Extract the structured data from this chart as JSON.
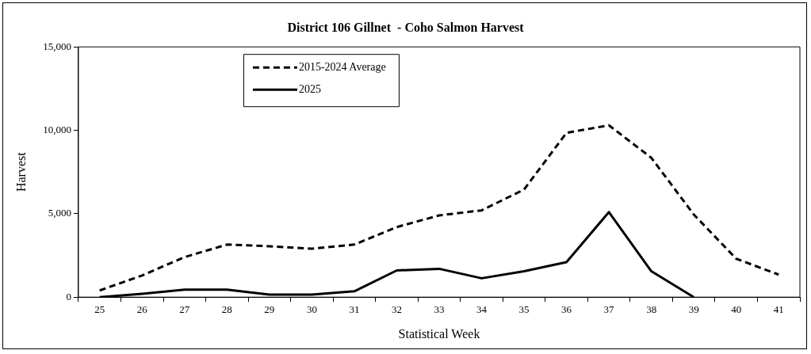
{
  "chart_data": {
    "type": "line",
    "title": "District 106 Gillnet  - Coho Salmon Harvest",
    "xlabel": "Statistical Week",
    "ylabel": "Harvest",
    "categories": [
      "25",
      "26",
      "27",
      "28",
      "29",
      "30",
      "31",
      "32",
      "33",
      "34",
      "35",
      "36",
      "37",
      "38",
      "39",
      "40",
      "41"
    ],
    "series": [
      {
        "name": "2015-2024 Average",
        "color": "#000000",
        "line_style": "dashed",
        "values": [
          400,
          1300,
          2400,
          3150,
          3050,
          2900,
          3150,
          4200,
          4900,
          5200,
          6450,
          9850,
          10300,
          8350,
          4950,
          2300,
          1350
        ]
      },
      {
        "name": "2025",
        "color": "#000000",
        "line_style": "solid",
        "values": [
          0,
          200,
          450,
          450,
          150,
          150,
          350,
          1600,
          1700,
          1130,
          1550,
          2100,
          5100,
          1550,
          0,
          null,
          null
        ]
      }
    ],
    "ylim": [
      0,
      15000
    ],
    "yticks": [
      0,
      {
        "value": 5000,
        "label": "5,000"
      },
      {
        "value": 10000,
        "label": "10,000"
      },
      {
        "value": 15000,
        "label": "15,000"
      }
    ],
    "grid": false,
    "legend": "top left",
    "marker": "none"
  }
}
